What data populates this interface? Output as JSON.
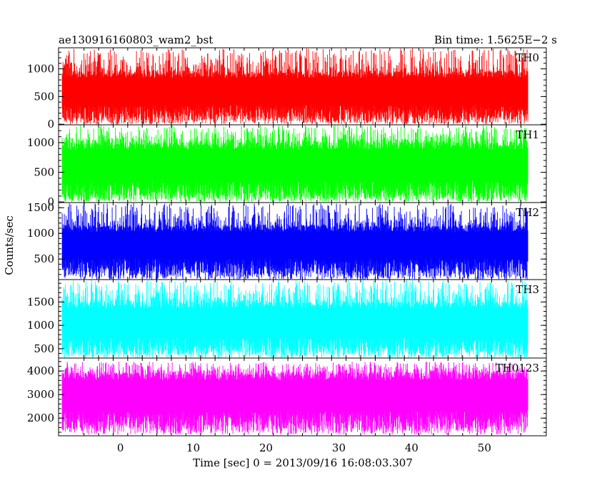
{
  "header": {
    "title": "ae130916160803_wam2_bst",
    "bin_time": "Bin time: 1.5625E−2 s"
  },
  "chart_data": {
    "type": "line",
    "title": "ae130916160803_wam2_bst",
    "xlabel": "Time [sec] 0 = 2013/09/16 16:08:03.307",
    "ylabel": "Counts/sec",
    "xlim": [
      -8.5,
      58.5
    ],
    "data_x_range": [
      -8,
      56
    ],
    "bin_time": 0.015625,
    "x_ticks": [
      0,
      10,
      20,
      30,
      40,
      50
    ],
    "x_tick_labels": [
      "0",
      "10",
      "20",
      "30",
      "40",
      "50"
    ],
    "grid": false,
    "panels": [
      {
        "name": "TH0",
        "color": "#ff0000",
        "ylim": [
          -10,
          1380
        ],
        "ticks": [
          0,
          500,
          1000
        ],
        "tick_labels": [
          "0",
          "500",
          "1000"
        ],
        "typical_range": [
          150,
          950
        ],
        "peak_range": [
          0,
          1370
        ]
      },
      {
        "name": "TH1",
        "color": "#00ff00",
        "ylim": [
          -10,
          1300
        ],
        "ticks": [
          0,
          500,
          1000
        ],
        "tick_labels": [
          "0",
          "500",
          "1000"
        ],
        "typical_range": [
          150,
          1000
        ],
        "peak_range": [
          0,
          1300
        ]
      },
      {
        "name": "TH2",
        "color": "#0000ff",
        "ylim": [
          100,
          1600
        ],
        "ticks": [
          500,
          1000,
          1500
        ],
        "tick_labels": [
          "500",
          "1000",
          "1500"
        ],
        "typical_range": [
          300,
          1150
        ],
        "peak_range": [
          100,
          1590
        ]
      },
      {
        "name": "TH3",
        "color": "#00ffff",
        "ylim": [
          300,
          1980
        ],
        "ticks": [
          500,
          1000,
          1500
        ],
        "tick_labels": [
          "500",
          "1000",
          "1500"
        ],
        "typical_range": [
          500,
          1500
        ],
        "peak_range": [
          300,
          1970
        ]
      },
      {
        "name": "TH0123",
        "color": "#ff00ff",
        "ylim": [
          1250,
          4550
        ],
        "ticks": [
          2000,
          3000,
          4000
        ],
        "tick_labels": [
          "2000",
          "3000",
          "4000"
        ],
        "typical_range": [
          1800,
          3900
        ],
        "peak_range": [
          1300,
          4400
        ]
      }
    ]
  }
}
